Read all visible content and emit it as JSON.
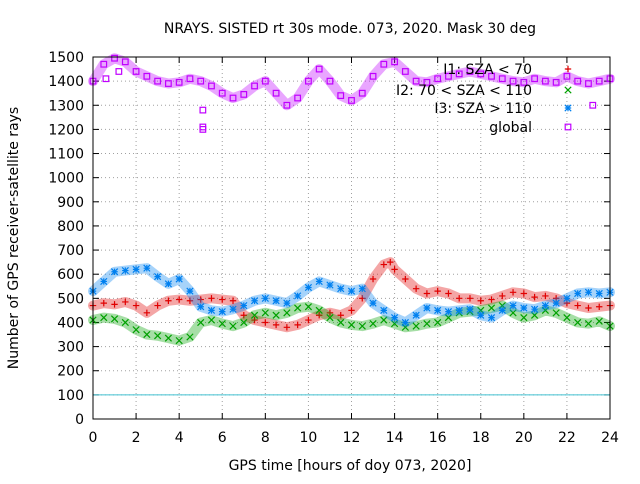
{
  "chart_data": {
    "type": "scatter",
    "title": "NRAYS. SISTED rt 30s mode. 073, 2020. Mask 30 deg",
    "xlabel": "GPS time [hours of doy 073, 2020]",
    "ylabel": "Number of GPS receiver-satellite rays",
    "xlim": [
      0,
      24
    ],
    "ylim": [
      0,
      1500
    ],
    "x_ticks": [
      "0",
      "2",
      "4",
      "6",
      "8",
      "10",
      "12",
      "14",
      "16",
      "18",
      "20",
      "22",
      "24"
    ],
    "y_ticks": [
      "0",
      "100",
      "200",
      "300",
      "400",
      "500",
      "600",
      "700",
      "800",
      "900",
      "1000",
      "1100",
      "1200",
      "1300",
      "1400",
      "1500"
    ],
    "grid": true,
    "legend_position": "top-right",
    "reference_line": {
      "y": 100,
      "color": "#40c0d0"
    },
    "series": [
      {
        "name": "I1: SZA < 70",
        "marker": "+",
        "color": "#e00000",
        "points": [
          [
            0,
            470
          ],
          [
            0.5,
            480
          ],
          [
            1,
            475
          ],
          [
            1.5,
            485
          ],
          [
            2,
            470
          ],
          [
            2.5,
            440
          ],
          [
            3,
            470
          ],
          [
            3.5,
            490
          ],
          [
            4,
            495
          ],
          [
            4.5,
            490
          ],
          [
            5,
            495
          ],
          [
            5.5,
            500
          ],
          [
            6,
            495
          ],
          [
            6.5,
            490
          ],
          [
            7,
            430
          ],
          [
            7.5,
            410
          ],
          [
            8,
            400
          ],
          [
            8.5,
            390
          ],
          [
            9,
            380
          ],
          [
            9.5,
            390
          ],
          [
            10,
            410
          ],
          [
            10.5,
            430
          ],
          [
            11,
            440
          ],
          [
            11.5,
            430
          ],
          [
            12,
            450
          ],
          [
            12.5,
            500
          ],
          [
            13,
            580
          ],
          [
            13.5,
            640
          ],
          [
            13.8,
            650
          ],
          [
            14,
            620
          ],
          [
            14.5,
            580
          ],
          [
            15,
            540
          ],
          [
            15.5,
            520
          ],
          [
            16,
            530
          ],
          [
            16.5,
            520
          ],
          [
            17,
            500
          ],
          [
            17.5,
            500
          ],
          [
            18,
            490
          ],
          [
            18.5,
            495
          ],
          [
            19,
            510
          ],
          [
            19.5,
            525
          ],
          [
            20,
            520
          ],
          [
            20.5,
            505
          ],
          [
            21,
            510
          ],
          [
            21.5,
            500
          ],
          [
            22,
            480
          ],
          [
            22.5,
            470
          ],
          [
            23,
            460
          ],
          [
            23.5,
            465
          ],
          [
            24,
            470
          ]
        ]
      },
      {
        "name": "I2: 70 < SZA < 110",
        "marker": "x",
        "color": "#00a000",
        "points": [
          [
            0,
            410
          ],
          [
            0.5,
            420
          ],
          [
            1,
            415
          ],
          [
            1.5,
            400
          ],
          [
            2,
            370
          ],
          [
            2.5,
            350
          ],
          [
            3,
            345
          ],
          [
            3.5,
            335
          ],
          [
            4,
            325
          ],
          [
            4.5,
            340
          ],
          [
            5,
            400
          ],
          [
            5.5,
            410
          ],
          [
            6,
            395
          ],
          [
            6.5,
            385
          ],
          [
            7,
            400
          ],
          [
            7.5,
            430
          ],
          [
            8,
            440
          ],
          [
            8.5,
            430
          ],
          [
            9,
            440
          ],
          [
            9.5,
            460
          ],
          [
            10,
            465
          ],
          [
            10.5,
            450
          ],
          [
            11,
            420
          ],
          [
            11.5,
            400
          ],
          [
            12,
            390
          ],
          [
            12.5,
            385
          ],
          [
            13,
            395
          ],
          [
            13.5,
            410
          ],
          [
            14,
            395
          ],
          [
            14.5,
            380
          ],
          [
            15,
            385
          ],
          [
            15.5,
            395
          ],
          [
            16,
            400
          ],
          [
            16.5,
            420
          ],
          [
            17,
            440
          ],
          [
            17.5,
            445
          ],
          [
            18,
            450
          ],
          [
            18.5,
            460
          ],
          [
            19,
            470
          ],
          [
            19.5,
            440
          ],
          [
            20,
            420
          ],
          [
            20.5,
            430
          ],
          [
            21,
            450
          ],
          [
            21.5,
            440
          ],
          [
            22,
            420
          ],
          [
            22.5,
            400
          ],
          [
            23,
            395
          ],
          [
            23.5,
            405
          ],
          [
            24,
            385
          ]
        ]
      },
      {
        "name": "I3: SZA > 110",
        "marker": "*",
        "color": "#0080f0",
        "points": [
          [
            0,
            530
          ],
          [
            0.5,
            570
          ],
          [
            1,
            610
          ],
          [
            1.5,
            615
          ],
          [
            2,
            620
          ],
          [
            2.5,
            625
          ],
          [
            3,
            590
          ],
          [
            3.5,
            560
          ],
          [
            4,
            580
          ],
          [
            4.5,
            530
          ],
          [
            5,
            465
          ],
          [
            5.5,
            450
          ],
          [
            6,
            445
          ],
          [
            6.5,
            455
          ],
          [
            7,
            470
          ],
          [
            7.5,
            490
          ],
          [
            8,
            500
          ],
          [
            8.5,
            490
          ],
          [
            9,
            480
          ],
          [
            9.5,
            510
          ],
          [
            10,
            545
          ],
          [
            10.5,
            570
          ],
          [
            11,
            555
          ],
          [
            11.5,
            540
          ],
          [
            12,
            530
          ],
          [
            12.5,
            540
          ],
          [
            13,
            480
          ],
          [
            13.5,
            450
          ],
          [
            14,
            420
          ],
          [
            14.5,
            400
          ],
          [
            15,
            430
          ],
          [
            15.5,
            460
          ],
          [
            16,
            450
          ],
          [
            16.5,
            445
          ],
          [
            17,
            450
          ],
          [
            17.5,
            455
          ],
          [
            18,
            430
          ],
          [
            18.5,
            420
          ],
          [
            19,
            450
          ],
          [
            19.5,
            470
          ],
          [
            20,
            460
          ],
          [
            20.5,
            455
          ],
          [
            21,
            470
          ],
          [
            21.5,
            480
          ],
          [
            22,
            500
          ],
          [
            22.5,
            520
          ],
          [
            23,
            525
          ],
          [
            23.5,
            520
          ],
          [
            24,
            525
          ]
        ]
      },
      {
        "name": "global",
        "marker": "square",
        "color": "#c000ff",
        "points": [
          [
            0,
            1400
          ],
          [
            0.5,
            1470
          ],
          [
            1,
            1495
          ],
          [
            1.5,
            1480
          ],
          [
            2,
            1440
          ],
          [
            2.5,
            1420
          ],
          [
            3,
            1400
          ],
          [
            3.5,
            1390
          ],
          [
            4,
            1395
          ],
          [
            4.5,
            1410
          ],
          [
            5,
            1400
          ],
          [
            5.5,
            1380
          ],
          [
            6,
            1350
          ],
          [
            6.5,
            1330
          ],
          [
            7,
            1345
          ],
          [
            7.5,
            1380
          ],
          [
            8,
            1400
          ],
          [
            8.5,
            1350
          ],
          [
            9,
            1300
          ],
          [
            9.5,
            1330
          ],
          [
            10,
            1400
          ],
          [
            10.5,
            1450
          ],
          [
            11,
            1400
          ],
          [
            11.5,
            1340
          ],
          [
            12,
            1320
          ],
          [
            12.5,
            1350
          ],
          [
            13,
            1420
          ],
          [
            13.5,
            1470
          ],
          [
            14,
            1480
          ],
          [
            14.5,
            1440
          ],
          [
            15,
            1400
          ],
          [
            15.5,
            1395
          ],
          [
            16,
            1410
          ],
          [
            16.5,
            1420
          ],
          [
            17,
            1430
          ],
          [
            17.5,
            1440
          ],
          [
            18,
            1430
          ],
          [
            18.5,
            1420
          ],
          [
            19,
            1410
          ],
          [
            19.5,
            1400
          ],
          [
            20,
            1395
          ],
          [
            20.5,
            1410
          ],
          [
            21,
            1400
          ],
          [
            21.5,
            1395
          ],
          [
            22,
            1420
          ],
          [
            22.5,
            1400
          ],
          [
            23,
            1390
          ],
          [
            23.5,
            1400
          ],
          [
            24,
            1410
          ]
        ],
        "outliers": [
          [
            0.6,
            1410
          ],
          [
            1.2,
            1440
          ],
          [
            5.1,
            1280
          ],
          [
            5.1,
            1210
          ],
          [
            5.1,
            1200
          ],
          [
            23.2,
            1300
          ]
        ]
      }
    ]
  }
}
